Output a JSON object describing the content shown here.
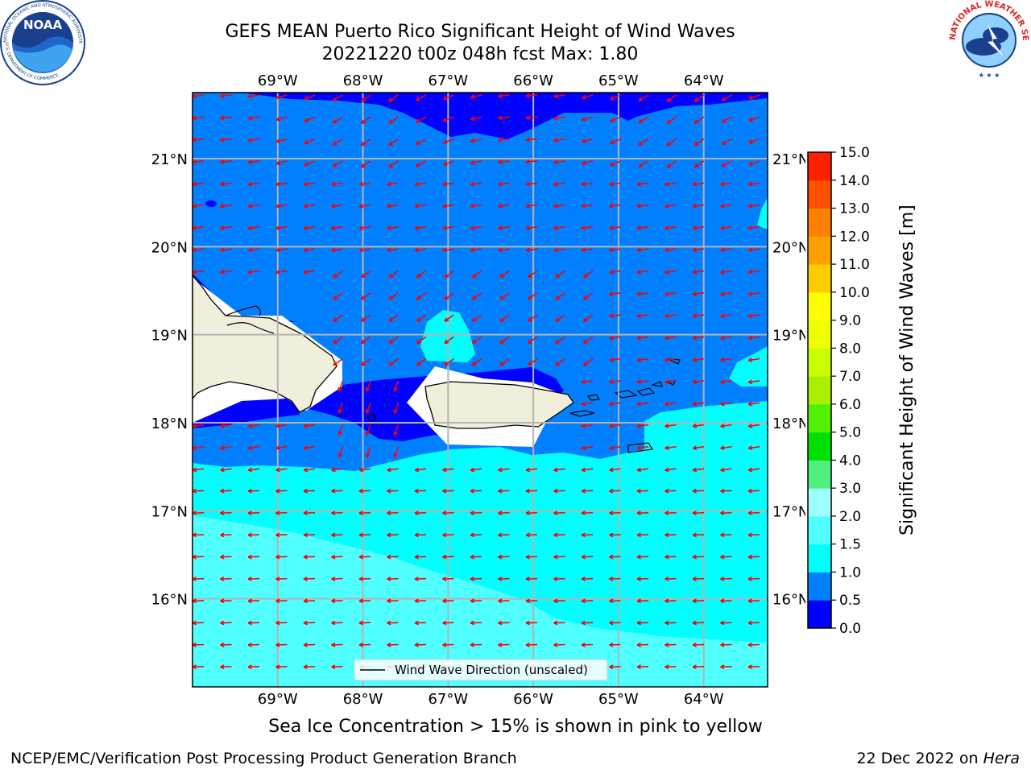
{
  "header": {
    "title_line1": "GEFS MEAN Puerto Rico Significant Height of Wind Waves",
    "title_line2": "20221220 t00z 048h fcst   Max: 1.80"
  },
  "logos": {
    "noaa_text": "NOAA",
    "noaa_ring_top": "NATIONAL OCEANIC AND ATMOSPHERIC ADMINISTRATION",
    "noaa_ring_bottom": "U.S. DEPARTMENT OF COMMERCE",
    "nws_ring_top": "NATIONAL WEATHER SERVICE"
  },
  "map": {
    "lon_ticks": [
      "69°W",
      "68°W",
      "67°W",
      "66°W",
      "65°W",
      "64°W"
    ],
    "lon_values": [
      -69,
      -68,
      -67,
      -66,
      -65,
      -64
    ],
    "lat_ticks": [
      "21°N",
      "20°N",
      "19°N",
      "18°N",
      "17°N",
      "16°N"
    ],
    "lat_values": [
      21,
      20,
      19,
      18,
      17,
      16
    ],
    "lon_range": [
      -70.0,
      -63.25
    ],
    "lat_range": [
      15.0,
      21.75
    ],
    "arrow_color": "#ff0000",
    "land_color": "#efefdc",
    "legend_text": "Wind Wave Direction (unscaled)"
  },
  "colorbar": {
    "label": "Significant Height of Wind Waves [m]",
    "ticks": [
      "0.0",
      "0.5",
      "1.0",
      "1.5",
      "2.0",
      "3.0",
      "4.0",
      "5.0",
      "6.0",
      "7.0",
      "8.0",
      "9.0",
      "10.0",
      "11.0",
      "12.0",
      "13.0",
      "14.0",
      "15.0"
    ],
    "colors": [
      "#0000ff",
      "#0080ff",
      "#00ffff",
      "#50ffff",
      "#a0ffff",
      "#50f080",
      "#00e000",
      "#50f000",
      "#a8f000",
      "#c8ff00",
      "#f0ff00",
      "#ffff00",
      "#ffcc00",
      "#ffa000",
      "#ff8000",
      "#ff5000",
      "#ff2000"
    ]
  },
  "notes": {
    "sea_ice": "Sea Ice Concentration > 15% is shown in pink to yellow"
  },
  "footer": {
    "left": "NCEP/EMC/Verification Post Processing Product Generation Branch",
    "right_prefix": "22 Dec 2022 on ",
    "right_host": "Hera"
  }
}
